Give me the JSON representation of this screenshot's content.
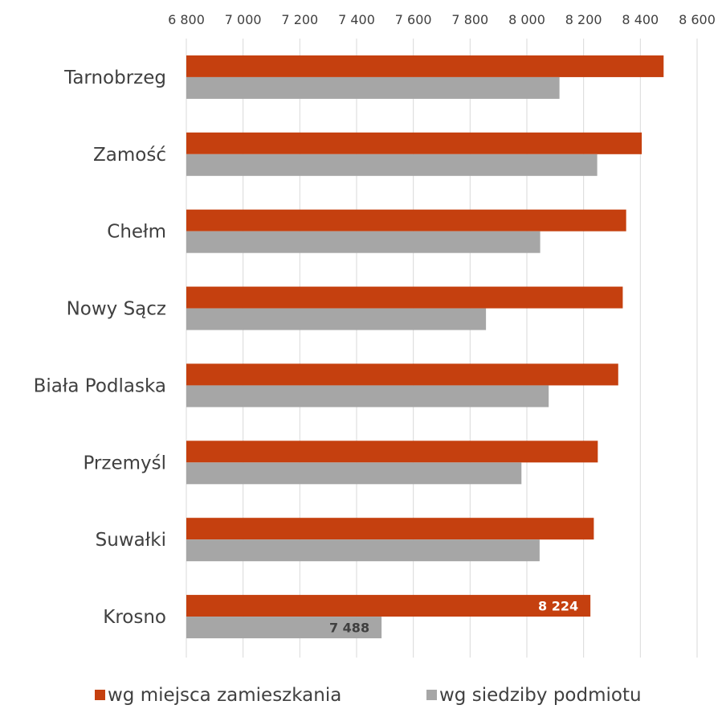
{
  "chart_data": {
    "type": "bar",
    "orientation": "horizontal",
    "categories": [
      "Tarnobrzeg",
      "Zamość",
      "Chełm",
      "Nowy Sącz",
      "Biała Podlaska",
      "Przemyśl",
      "Suwałki",
      "Krosno"
    ],
    "series": [
      {
        "name": "wg miejsca zamieszkania",
        "color": "#C5400F",
        "values": [
          8482,
          8405,
          8350,
          8338,
          8322,
          8250,
          8236,
          8224
        ],
        "data_labels": [
          null,
          null,
          null,
          null,
          null,
          null,
          null,
          "8 224"
        ]
      },
      {
        "name": "wg siedziby podmiotu",
        "color": "#A6A6A6",
        "values": [
          8115,
          8248,
          8047,
          7856,
          8077,
          7981,
          8045,
          7488
        ],
        "data_labels": [
          null,
          null,
          null,
          null,
          null,
          null,
          null,
          "7 488"
        ]
      }
    ],
    "xlim": [
      6800,
      8600
    ],
    "x_ticks": [
      "6 800",
      "7 000",
      "7 200",
      "7 400",
      "7 600",
      "7 800",
      "8 000",
      "8 200",
      "8 400",
      "8 600"
    ],
    "x_axis_position": "top",
    "grid": true,
    "legend_position": "bottom",
    "title": "",
    "xlabel": "",
    "ylabel": ""
  }
}
